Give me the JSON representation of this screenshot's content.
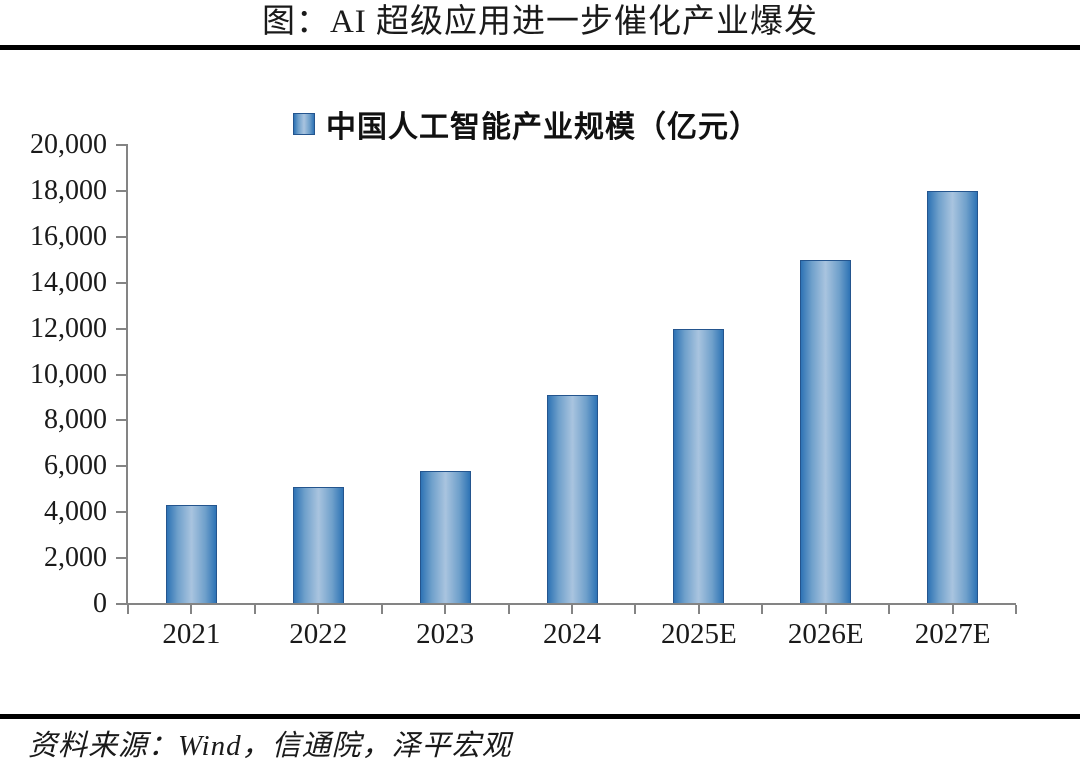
{
  "page": {
    "title": "图：AI 超级应用进一步催化产业爆发",
    "source_note": "资料来源：Wind，信通院，泽平宏观"
  },
  "chart_data": {
    "type": "bar",
    "title": "中国人工智能产业规模（亿元）",
    "legend_position": "top",
    "categories": [
      "2021",
      "2022",
      "2023",
      "2024",
      "2025E",
      "2026E",
      "2027E"
    ],
    "series": [
      {
        "name": "中国人工智能产业规模（亿元）",
        "values": [
          4300,
          5100,
          5800,
          9100,
          12000,
          15000,
          18000
        ]
      }
    ],
    "ylim": [
      0,
      20000
    ],
    "ytick_interval": 2000,
    "ytick_labels": [
      "0",
      "2,000",
      "4,000",
      "6,000",
      "8,000",
      "10,000",
      "12,000",
      "14,000",
      "16,000",
      "18,000",
      "20,000"
    ],
    "grid": false,
    "colors": {
      "bar_edge": "#2E73B5",
      "bar_center": "#A9C4DF",
      "bar_border": "#24558E",
      "axis": "#848484",
      "text": "#1A1A1A",
      "rule": "#000000"
    }
  }
}
